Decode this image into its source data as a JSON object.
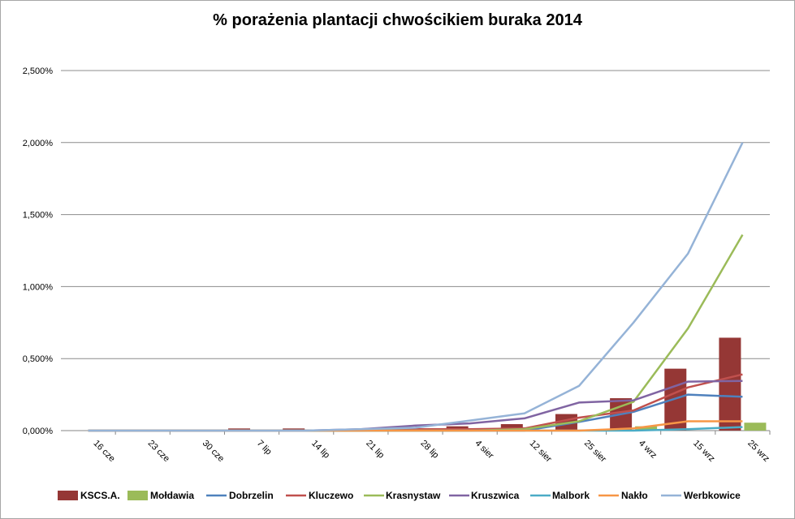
{
  "chart_data": {
    "type": "bar+line",
    "title": "%  porażenia plantacji chwościkiem buraka 2014",
    "xlabel": "",
    "ylabel": "",
    "categories": [
      "16 cze",
      "23 cze",
      "30 cze",
      "7 lip",
      "14 lip",
      "21 lip",
      "28 lip",
      "4 sier",
      "12 sier",
      "25 sier",
      "4 wrz",
      "15 wrz",
      "25 wrz"
    ],
    "y_ticks": [
      "0,000%",
      "0,500%",
      "1,000%",
      "1,500%",
      "2,000%",
      "2,500%"
    ],
    "ylim": [
      0,
      2.5
    ],
    "grid": true,
    "legend_position": "bottom",
    "bar_series": [
      {
        "name": "KSCS.A.",
        "color": "#953735",
        "values": [
          0,
          0,
          0,
          0.015,
          0.015,
          0.01,
          0.005,
          0.03,
          0.045,
          0.115,
          0.225,
          0.43,
          0.645
        ]
      },
      {
        "name": "Mołdawia",
        "color": "#9bbb59",
        "values": [
          0,
          0,
          0,
          0,
          0,
          0,
          0,
          0,
          0,
          0,
          0.03,
          0,
          0.055
        ]
      }
    ],
    "line_series": [
      {
        "name": "Dobrzelin",
        "color": "#4f81bd",
        "values": [
          0,
          0,
          0,
          0,
          0,
          0,
          0,
          0,
          0,
          0.06,
          0.13,
          0.25,
          0.235
        ]
      },
      {
        "name": "Kluczewo",
        "color": "#c0504d",
        "values": [
          0,
          0,
          0,
          0,
          0,
          0,
          0.01,
          0.01,
          0.015,
          0.09,
          0.14,
          0.3,
          0.39
        ]
      },
      {
        "name": "Krasnystaw",
        "color": "#9bbb59",
        "values": [
          0,
          0,
          0,
          0,
          0,
          0,
          0,
          0,
          0.01,
          0.065,
          0.2,
          0.71,
          1.36
        ]
      },
      {
        "name": "Kruszwica",
        "color": "#8064a2",
        "values": [
          0,
          0,
          0,
          0,
          0,
          0.01,
          0.035,
          0.05,
          0.085,
          0.195,
          0.21,
          0.34,
          0.345
        ]
      },
      {
        "name": "Malbork",
        "color": "#4bacc6",
        "values": [
          0,
          0,
          0,
          0,
          0,
          0,
          0,
          0,
          0,
          0,
          0,
          0.01,
          0.025
        ]
      },
      {
        "name": "Nakło",
        "color": "#f79646",
        "values": [
          0,
          0,
          0,
          0,
          0,
          0,
          0,
          0,
          0,
          0,
          0.015,
          0.065,
          0.065
        ]
      },
      {
        "name": "Werbkowice",
        "color": "#95b3d7",
        "values": [
          0,
          0,
          0,
          0,
          0,
          0.01,
          0.02,
          0.07,
          0.12,
          0.31,
          0.75,
          1.23,
          2.0
        ]
      }
    ],
    "legend_order": [
      "KSCS.A.",
      "Mołdawia",
      "Dobrzelin",
      "Kluczewo",
      "Krasnystaw",
      "Kruszwica",
      "Malbork",
      "Nakło",
      "Werbkowice"
    ]
  }
}
